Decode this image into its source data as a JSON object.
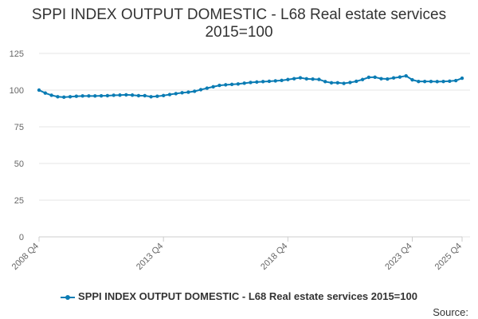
{
  "chart_data": {
    "type": "line",
    "title": "SPPI INDEX OUTPUT DOMESTIC - L68 Real estate services",
    "subtitle": "2015=100",
    "xlabel": "",
    "ylabel": "",
    "ylim": [
      0,
      125
    ],
    "yticks": [
      0,
      25,
      50,
      75,
      100,
      125
    ],
    "x_tick_labels": [
      "2008 Q4",
      "2013 Q4",
      "2018 Q4",
      "2023 Q4",
      "2025 Q4"
    ],
    "x_tick_positions": [
      0,
      20,
      40,
      60,
      68
    ],
    "grid": true,
    "legend_position": "bottom",
    "color": "#0b7cb4",
    "series": [
      {
        "name": "SPPI INDEX OUTPUT DOMESTIC - L68 Real estate services 2015=100",
        "values": [
          100.0,
          98.0,
          96.5,
          95.5,
          95.2,
          95.5,
          95.8,
          96.0,
          96.0,
          96.0,
          96.1,
          96.2,
          96.5,
          96.6,
          96.8,
          96.6,
          96.2,
          96.2,
          95.5,
          95.8,
          96.3,
          97.0,
          97.6,
          98.2,
          98.6,
          99.2,
          100.3,
          101.3,
          102.3,
          103.2,
          103.6,
          103.9,
          104.2,
          104.7,
          105.2,
          105.5,
          105.8,
          106.0,
          106.3,
          106.6,
          107.2,
          107.8,
          108.4,
          107.7,
          107.5,
          107.3,
          105.8,
          105.0,
          105.0,
          104.6,
          105.2,
          106.0,
          107.2,
          108.7,
          108.8,
          107.8,
          107.6,
          108.3,
          108.9,
          109.7,
          107.0,
          105.9,
          105.9,
          105.9,
          105.8,
          105.9,
          106.1,
          106.5,
          108.1
        ]
      }
    ]
  },
  "legend": {
    "label": "SPPI INDEX OUTPUT DOMESTIC - L68 Real estate services 2015=100"
  },
  "footer": {
    "source_label": "Source:"
  }
}
